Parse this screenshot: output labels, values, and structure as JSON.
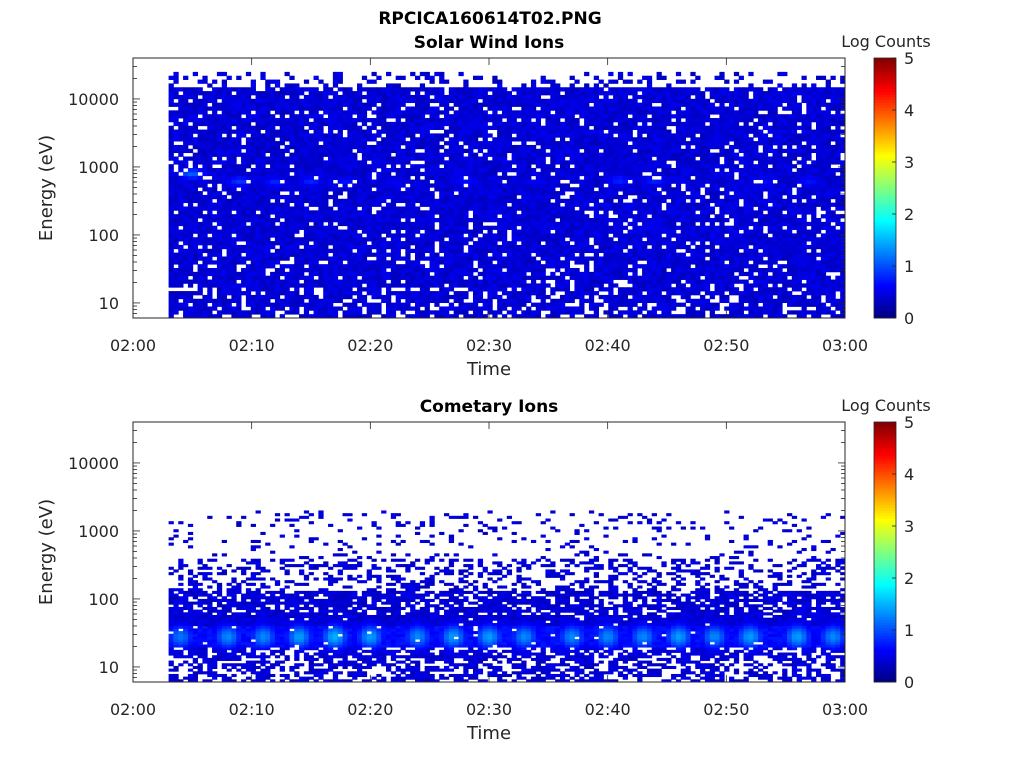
{
  "figure_title": "RPCICA160614T02.PNG",
  "chart_data": [
    {
      "type": "heatmap",
      "title": "Solar Wind Ions",
      "xlabel": "Time",
      "ylabel": "Energy (eV)",
      "x_ticks": [
        "02:00",
        "02:10",
        "02:20",
        "02:30",
        "02:40",
        "02:50",
        "03:00"
      ],
      "y_scale": "log",
      "y_ticks": [
        10,
        100,
        1000,
        10000
      ],
      "y_tick_labels": [
        "10",
        "100",
        "1000",
        "10000"
      ],
      "y_range_eV": [
        6,
        40000
      ],
      "colorbar": {
        "label": "Log Counts",
        "range": [
          0,
          5
        ],
        "ticks": [
          "0",
          "1",
          "2",
          "3",
          "4",
          "5"
        ],
        "colormap": "jet"
      },
      "data_time_range": [
        "02:03",
        "03:00"
      ],
      "energy_band_eV": [
        6,
        25000
      ],
      "background_log_counts": 0.3,
      "hot_spots": [
        {
          "time": "02:05",
          "energy_eV": 800,
          "log_counts": 1.1
        },
        {
          "time": "02:09",
          "energy_eV": 620,
          "log_counts": 0.9
        },
        {
          "time": "02:12",
          "energy_eV": 600,
          "log_counts": 0.8
        },
        {
          "time": "02:15",
          "energy_eV": 620,
          "log_counts": 0.8
        },
        {
          "time": "02:18",
          "energy_eV": 620,
          "log_counts": 0.7
        },
        {
          "time": "02:22",
          "energy_eV": 600,
          "log_counts": 0.6
        },
        {
          "time": "02:28",
          "energy_eV": 640,
          "log_counts": 0.7
        },
        {
          "time": "02:34",
          "energy_eV": 620,
          "log_counts": 0.6
        },
        {
          "time": "02:41",
          "energy_eV": 640,
          "log_counts": 0.8
        },
        {
          "time": "02:44",
          "energy_eV": 640,
          "log_counts": 0.8
        },
        {
          "time": "02:53",
          "energy_eV": 620,
          "log_counts": 0.7
        },
        {
          "time": "02:57",
          "energy_eV": 620,
          "log_counts": 0.7
        }
      ],
      "seed": 17
    },
    {
      "type": "heatmap",
      "title": "Cometary Ions",
      "xlabel": "Time",
      "ylabel": "Energy (eV)",
      "x_ticks": [
        "02:00",
        "02:10",
        "02:20",
        "02:30",
        "02:40",
        "02:50",
        "03:00"
      ],
      "y_scale": "log",
      "y_ticks": [
        10,
        100,
        1000,
        10000
      ],
      "y_tick_labels": [
        "10",
        "100",
        "1000",
        "10000"
      ],
      "y_range_eV": [
        6,
        40000
      ],
      "colorbar": {
        "label": "Log Counts",
        "range": [
          0,
          5
        ],
        "ticks": [
          "0",
          "1",
          "2",
          "3",
          "4",
          "5"
        ],
        "colormap": "jet"
      },
      "data_time_range": [
        "02:03",
        "03:00"
      ],
      "energy_band_eV": [
        6,
        2000
      ],
      "background_log_counts": 0.3,
      "hot_band_eV": [
        20,
        40
      ],
      "hot_spots": [
        {
          "time": "02:04",
          "energy_eV": 28,
          "log_counts": 1.2
        },
        {
          "time": "02:08",
          "energy_eV": 28,
          "log_counts": 1.3
        },
        {
          "time": "02:11",
          "energy_eV": 28,
          "log_counts": 1.3
        },
        {
          "time": "02:14",
          "energy_eV": 28,
          "log_counts": 1.4
        },
        {
          "time": "02:17",
          "energy_eV": 28,
          "log_counts": 1.5
        },
        {
          "time": "02:20",
          "energy_eV": 28,
          "log_counts": 1.4
        },
        {
          "time": "02:24",
          "energy_eV": 28,
          "log_counts": 1.3
        },
        {
          "time": "02:27",
          "energy_eV": 28,
          "log_counts": 1.4
        },
        {
          "time": "02:30",
          "energy_eV": 28,
          "log_counts": 1.4
        },
        {
          "time": "02:33",
          "energy_eV": 28,
          "log_counts": 1.3
        },
        {
          "time": "02:37",
          "energy_eV": 28,
          "log_counts": 1.3
        },
        {
          "time": "02:40",
          "energy_eV": 28,
          "log_counts": 1.3
        },
        {
          "time": "02:43",
          "energy_eV": 28,
          "log_counts": 1.3
        },
        {
          "time": "02:46",
          "energy_eV": 28,
          "log_counts": 1.4
        },
        {
          "time": "02:49",
          "energy_eV": 28,
          "log_counts": 1.3
        },
        {
          "time": "02:52",
          "energy_eV": 28,
          "log_counts": 1.4
        },
        {
          "time": "02:56",
          "energy_eV": 28,
          "log_counts": 1.4
        },
        {
          "time": "02:59",
          "energy_eV": 28,
          "log_counts": 1.3
        }
      ],
      "seed": 91
    }
  ]
}
